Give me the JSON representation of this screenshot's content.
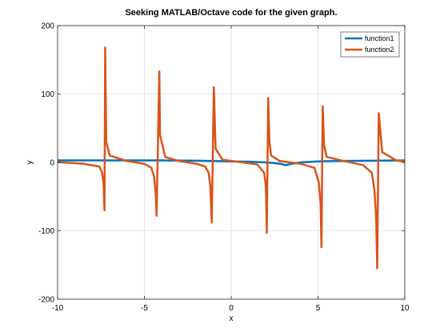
{
  "chart_data": {
    "type": "line",
    "title": "Seeking MATLAB/Octave code for the given graph.",
    "xlabel": "x",
    "ylabel": "y",
    "xlim": [
      -10,
      10
    ],
    "ylim": [
      -200,
      200
    ],
    "xticks": [
      -10,
      -5,
      0,
      5,
      10
    ],
    "yticks": [
      -200,
      -100,
      0,
      100,
      200
    ],
    "xtick_labels": [
      "-10",
      "-5",
      "0",
      "5",
      "10"
    ],
    "ytick_labels": [
      "-200",
      "-100",
      "0",
      "100",
      "200"
    ],
    "grid": true,
    "legend_position": "top-right",
    "series": [
      {
        "name": "function1",
        "color": "#0072BD",
        "x": [
          -10,
          -8,
          -6,
          -4,
          -2,
          -1,
          0,
          1,
          2,
          2.5,
          2.8,
          3.0,
          3.14,
          3.3,
          3.6,
          4,
          5,
          6,
          8,
          10
        ],
        "y": [
          3,
          3,
          3,
          3,
          2.5,
          2,
          1.5,
          1,
          0,
          -1,
          -2,
          -3,
          -4,
          -3,
          -1.5,
          0,
          1.5,
          2,
          2.5,
          3
        ]
      },
      {
        "name": "function2",
        "color": "#D95319",
        "x": [
          -10,
          -8.5,
          -7.6,
          -7.45,
          -7.35,
          -7.3,
          -7.26,
          -7.2,
          -7.0,
          -6.0,
          -5.0,
          -4.6,
          -4.45,
          -4.35,
          -4.3,
          -4.14,
          -4.1,
          -3.8,
          -3.0,
          -2.0,
          -1.5,
          -1.3,
          -1.2,
          -1.12,
          -1.0,
          -0.9,
          -0.5,
          0.5,
          1.5,
          1.9,
          2.0,
          2.05,
          2.13,
          2.2,
          2.3,
          2.8,
          4.0,
          4.8,
          5.05,
          5.15,
          5.2,
          5.27,
          5.35,
          5.5,
          6.5,
          7.6,
          8.1,
          8.25,
          8.35,
          8.41,
          8.5,
          8.7,
          9.5,
          10
        ],
        "y": [
          0.5,
          -2,
          -6,
          -14,
          -30,
          -70,
          168,
          30,
          10,
          2,
          -2,
          -8,
          -20,
          -45,
          -78,
          133,
          40,
          8,
          2,
          -2,
          -6,
          -15,
          -35,
          -88,
          110,
          20,
          4,
          0.5,
          -3,
          -15,
          -35,
          -103,
          94,
          30,
          10,
          2,
          -2,
          -8,
          -30,
          -60,
          -124,
          82,
          25,
          8,
          2,
          -4,
          -15,
          -40,
          -80,
          -155,
          72,
          15,
          3,
          1
        ]
      }
    ]
  }
}
